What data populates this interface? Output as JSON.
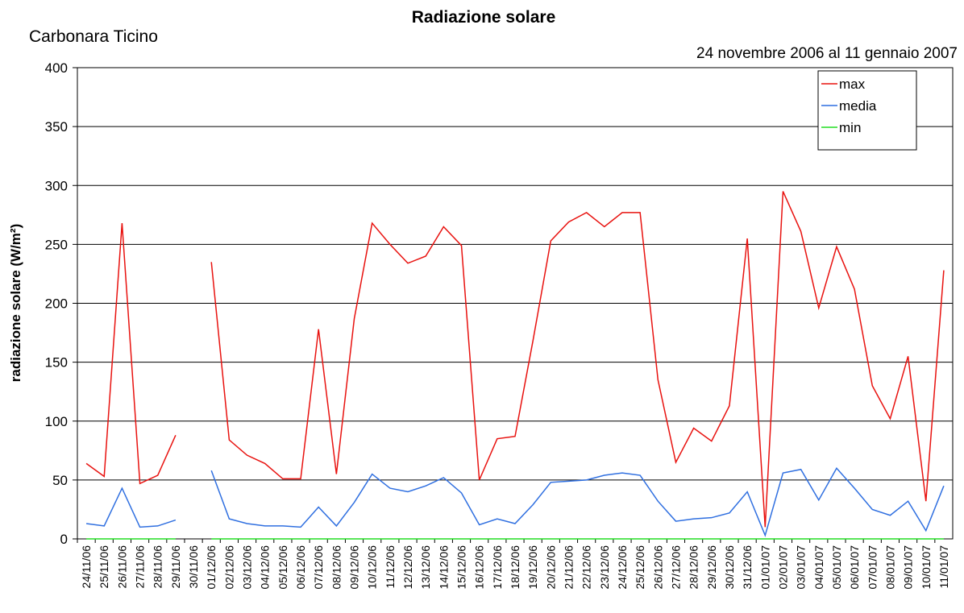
{
  "chart_data": {
    "type": "line",
    "title": "Radiazione solare",
    "subtitle": "Carbonara Ticino",
    "date_range": "24 novembre 2006 al 11 gennaio 2007",
    "y_label": "radiazione solare (W/m²)",
    "categories": [
      "24/11/06",
      "25/11/06",
      "26/11/06",
      "27/11/06",
      "28/11/06",
      "29/11/06",
      "30/11/06",
      "01/12/06",
      "02/12/06",
      "03/12/06",
      "04/12/06",
      "05/12/06",
      "06/12/06",
      "07/12/06",
      "08/12/06",
      "09/12/06",
      "10/12/06",
      "11/12/06",
      "12/12/06",
      "13/12/06",
      "14/12/06",
      "15/12/06",
      "16/12/06",
      "17/12/06",
      "18/12/06",
      "19/12/06",
      "20/12/06",
      "21/12/06",
      "22/12/06",
      "23/12/06",
      "24/12/06",
      "25/12/06",
      "26/12/06",
      "27/12/06",
      "28/12/06",
      "29/12/06",
      "30/12/06",
      "31/12/06",
      "01/01/07",
      "02/01/07",
      "03/01/07",
      "04/01/07",
      "05/01/07",
      "06/01/07",
      "07/01/07",
      "08/01/07",
      "09/01/07",
      "10/01/07",
      "11/01/07"
    ],
    "series": [
      {
        "name": "max",
        "color": "#e8120f",
        "values": [
          64,
          53,
          268,
          47,
          54,
          88,
          null,
          235,
          84,
          71,
          64,
          51,
          51,
          178,
          55,
          187,
          268,
          250,
          234,
          240,
          265,
          249,
          50,
          85,
          87,
          168,
          253,
          269,
          277,
          265,
          277,
          277,
          135,
          65,
          94,
          83,
          113,
          255,
          10,
          295,
          261,
          196,
          248,
          212,
          130,
          102,
          155,
          32,
          228
        ]
      },
      {
        "name": "media",
        "color": "#2f6fe0",
        "values": [
          13,
          11,
          43,
          10,
          11,
          16,
          null,
          58,
          17,
          13,
          11,
          11,
          10,
          27,
          11,
          31,
          55,
          43,
          40,
          45,
          52,
          39,
          12,
          17,
          13,
          29,
          48,
          49,
          50,
          54,
          56,
          54,
          32,
          15,
          17,
          18,
          22,
          40,
          3,
          56,
          59,
          33,
          60,
          43,
          25,
          20,
          32,
          7,
          45
        ]
      },
      {
        "name": "min",
        "color": "#22dd22",
        "values": [
          0,
          0,
          0,
          0,
          0,
          0,
          null,
          0,
          0,
          0,
          0,
          0,
          0,
          0,
          0,
          0,
          0,
          0,
          0,
          0,
          0,
          0,
          0,
          0,
          0,
          0,
          0,
          0,
          0,
          0,
          0,
          0,
          0,
          0,
          0,
          0,
          0,
          0,
          0,
          0,
          0,
          0,
          0,
          0,
          0,
          0,
          0,
          0,
          0
        ]
      }
    ],
    "ylim": [
      0,
      400
    ],
    "yticks": [
      0,
      50,
      100,
      150,
      200,
      250,
      300,
      350,
      400
    ],
    "grid": true,
    "legend": "top-right"
  }
}
